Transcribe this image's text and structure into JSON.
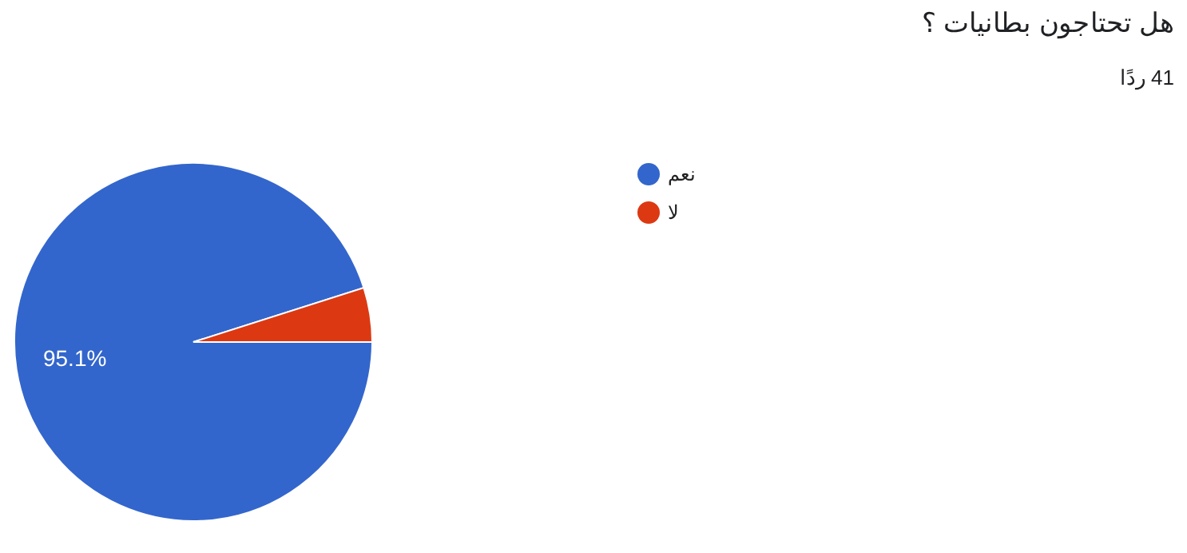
{
  "chart_data": {
    "type": "pie",
    "title": "هل تحتاجون بطانيات ؟",
    "subtitle": "41 ردًا",
    "categories": [
      "نعم",
      "لا"
    ],
    "values": [
      95.1,
      4.9
    ],
    "colors": [
      "#3366cc",
      "#dc3912"
    ],
    "value_labels": [
      "95.1%",
      null
    ],
    "legend": "right"
  }
}
